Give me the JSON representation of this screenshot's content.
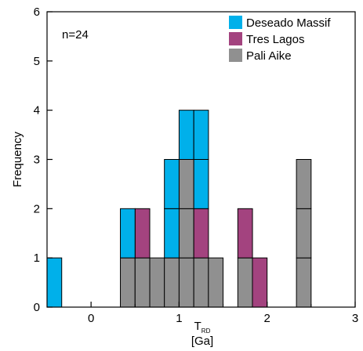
{
  "chart_data": {
    "type": "bar",
    "stacking": "stacked-histogram",
    "annotation": "n=24",
    "xlabel_main": "T",
    "xlabel_sub": "RD",
    "xlabel_unit": "[Ga]",
    "ylabel": "Frequency",
    "xlim": [
      -0.5,
      3.0
    ],
    "ylim": [
      0,
      6
    ],
    "bin_width": 0.1667,
    "x_ticks": [
      0,
      1,
      2,
      3
    ],
    "y_ticks": [
      0,
      1,
      2,
      3,
      4,
      5,
      6
    ],
    "legend_position": "top-right",
    "colors": {
      "Deseado Massif": "#00b0ea",
      "Tres Lagos": "#a3437f",
      "Pali Aike": "#909090"
    },
    "series": [
      {
        "name": "Pali Aike",
        "bins_start": [
          0.333,
          0.5,
          0.667,
          0.833,
          1.0,
          1.167,
          1.333,
          1.667,
          2.333
        ],
        "counts": [
          1,
          1,
          1,
          1,
          3,
          1,
          1,
          1,
          3
        ]
      },
      {
        "name": "Tres Lagos",
        "bins_start": [
          0.5,
          1.167,
          1.667,
          1.833
        ],
        "counts": [
          1,
          1,
          1,
          1
        ]
      },
      {
        "name": "Deseado Massif",
        "bins_start": [
          -0.5,
          0.333,
          0.833,
          1.0,
          1.167
        ],
        "counts": [
          1,
          1,
          2,
          1,
          2
        ]
      }
    ],
    "grid": false
  }
}
